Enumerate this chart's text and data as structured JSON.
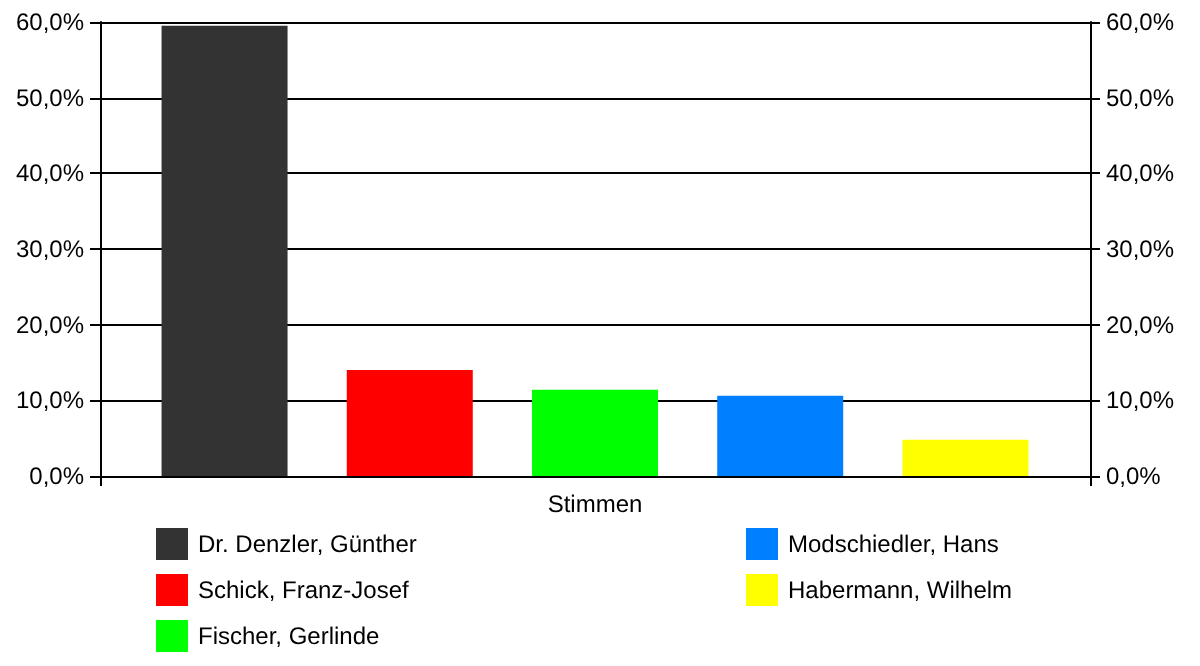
{
  "chart_data": {
    "type": "bar",
    "categories": [
      "Stimmen"
    ],
    "series": [
      {
        "name": "Dr. Denzler, Günther",
        "color": "#333333",
        "values": [
          59.5
        ]
      },
      {
        "name": "Schick, Franz-Josef",
        "color": "#ff0000",
        "values": [
          14.0
        ]
      },
      {
        "name": "Fischer, Gerlinde",
        "color": "#00ff00",
        "values": [
          11.4
        ]
      },
      {
        "name": "Modschiedler, Hans",
        "color": "#0080ff",
        "values": [
          10.6
        ]
      },
      {
        "name": "Habermann, Wilhelm",
        "color": "#ffff00",
        "values": [
          4.8
        ]
      }
    ],
    "ylim": [
      0,
      60
    ],
    "yticks": [
      {
        "value": 0,
        "label": "0,0%"
      },
      {
        "value": 10,
        "label": "10,0%"
      },
      {
        "value": 20,
        "label": "20,0%"
      },
      {
        "value": 30,
        "label": "30,0%"
      },
      {
        "value": 40,
        "label": "40,0%"
      },
      {
        "value": 50,
        "label": "50,0%"
      },
      {
        "value": 60,
        "label": "60,0%"
      }
    ],
    "grid": "y",
    "legend": "bottom"
  }
}
